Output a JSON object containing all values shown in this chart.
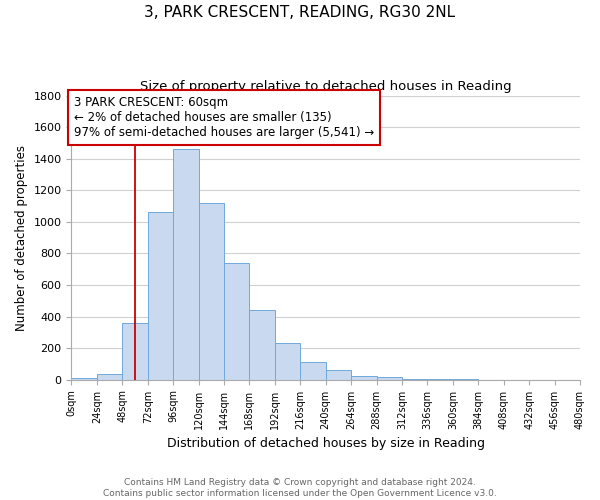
{
  "title": "3, PARK CRESCENT, READING, RG30 2NL",
  "subtitle": "Size of property relative to detached houses in Reading",
  "xlabel": "Distribution of detached houses by size in Reading",
  "ylabel": "Number of detached properties",
  "bin_edges": [
    0,
    24,
    48,
    72,
    96,
    120,
    144,
    168,
    192,
    216,
    240,
    264,
    288,
    312,
    336,
    360,
    384,
    408,
    432,
    456,
    480
  ],
  "bar_heights": [
    10,
    35,
    360,
    1060,
    1460,
    1120,
    740,
    440,
    230,
    115,
    60,
    25,
    15,
    5,
    2,
    2,
    1,
    0,
    0,
    0
  ],
  "bar_color": "#c9d9f0",
  "bar_edge_color": "#6fa8dc",
  "vline_x": 60,
  "vline_color": "#cc0000",
  "annotation_title": "3 PARK CRESCENT: 60sqm",
  "annotation_line1": "← 2% of detached houses are smaller (135)",
  "annotation_line2": "97% of semi-detached houses are larger (5,541) →",
  "annotation_box_color": "#ffffff",
  "annotation_box_edge_color": "#cc0000",
  "ylim": [
    0,
    1800
  ],
  "xlim": [
    0,
    480
  ],
  "yticks": [
    0,
    200,
    400,
    600,
    800,
    1000,
    1200,
    1400,
    1600,
    1800
  ],
  "tick_positions": [
    0,
    24,
    48,
    72,
    96,
    120,
    144,
    168,
    192,
    216,
    240,
    264,
    288,
    312,
    336,
    360,
    384,
    408,
    432,
    456,
    480
  ],
  "tick_labels": [
    "0sqm",
    "24sqm",
    "48sqm",
    "72sqm",
    "96sqm",
    "120sqm",
    "144sqm",
    "168sqm",
    "192sqm",
    "216sqm",
    "240sqm",
    "264sqm",
    "288sqm",
    "312sqm",
    "336sqm",
    "360sqm",
    "384sqm",
    "408sqm",
    "432sqm",
    "456sqm",
    "480sqm"
  ],
  "footer_line1": "Contains HM Land Registry data © Crown copyright and database right 2024.",
  "footer_line2": "Contains public sector information licensed under the Open Government Licence v3.0.",
  "background_color": "#ffffff",
  "grid_color": "#d0d0d0",
  "figsize": [
    6.0,
    5.0
  ],
  "dpi": 100
}
